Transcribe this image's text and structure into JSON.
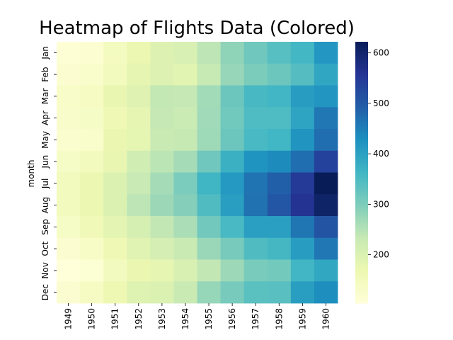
{
  "chart_data": {
    "type": "heatmap",
    "title": "Heatmap of Flights Data (Colored)",
    "xlabel": "",
    "ylabel": "month",
    "x_categories": [
      "1949",
      "1950",
      "1951",
      "1952",
      "1953",
      "1954",
      "1955",
      "1956",
      "1957",
      "1958",
      "1959",
      "1960"
    ],
    "y_categories": [
      "Jan",
      "Feb",
      "Mar",
      "Apr",
      "May",
      "Jun",
      "Jul",
      "Aug",
      "Sep",
      "Oct",
      "Nov",
      "Dec"
    ],
    "values": [
      [
        112,
        115,
        145,
        171,
        196,
        204,
        242,
        284,
        315,
        340,
        360,
        417
      ],
      [
        118,
        126,
        150,
        180,
        196,
        188,
        233,
        277,
        301,
        318,
        342,
        391
      ],
      [
        132,
        141,
        178,
        193,
        236,
        235,
        267,
        317,
        356,
        362,
        406,
        419
      ],
      [
        129,
        135,
        163,
        181,
        235,
        227,
        269,
        313,
        348,
        348,
        396,
        461
      ],
      [
        121,
        125,
        172,
        183,
        229,
        234,
        270,
        318,
        355,
        363,
        420,
        472
      ],
      [
        135,
        149,
        178,
        218,
        243,
        264,
        315,
        374,
        422,
        435,
        472,
        535
      ],
      [
        148,
        170,
        199,
        230,
        264,
        302,
        364,
        413,
        465,
        491,
        548,
        622
      ],
      [
        148,
        170,
        199,
        242,
        272,
        293,
        347,
        405,
        467,
        505,
        559,
        606
      ],
      [
        136,
        158,
        184,
        209,
        237,
        259,
        312,
        355,
        404,
        404,
        463,
        508
      ],
      [
        119,
        133,
        162,
        191,
        211,
        229,
        274,
        306,
        347,
        359,
        407,
        461
      ],
      [
        104,
        114,
        146,
        172,
        180,
        203,
        237,
        271,
        305,
        310,
        362,
        390
      ],
      [
        118,
        140,
        166,
        194,
        201,
        229,
        278,
        306,
        336,
        337,
        405,
        432
      ]
    ],
    "colormap": "YlGnBu",
    "colormap_stops": [
      "#ffffd9",
      "#edf8b1",
      "#c7e9b4",
      "#7fcdbb",
      "#41b6c4",
      "#1d91c0",
      "#225ea8",
      "#253494",
      "#081d58"
    ],
    "colorbar": {
      "vmin": 104,
      "vmax": 622,
      "ticks": [
        200,
        300,
        400,
        500,
        600
      ]
    }
  }
}
